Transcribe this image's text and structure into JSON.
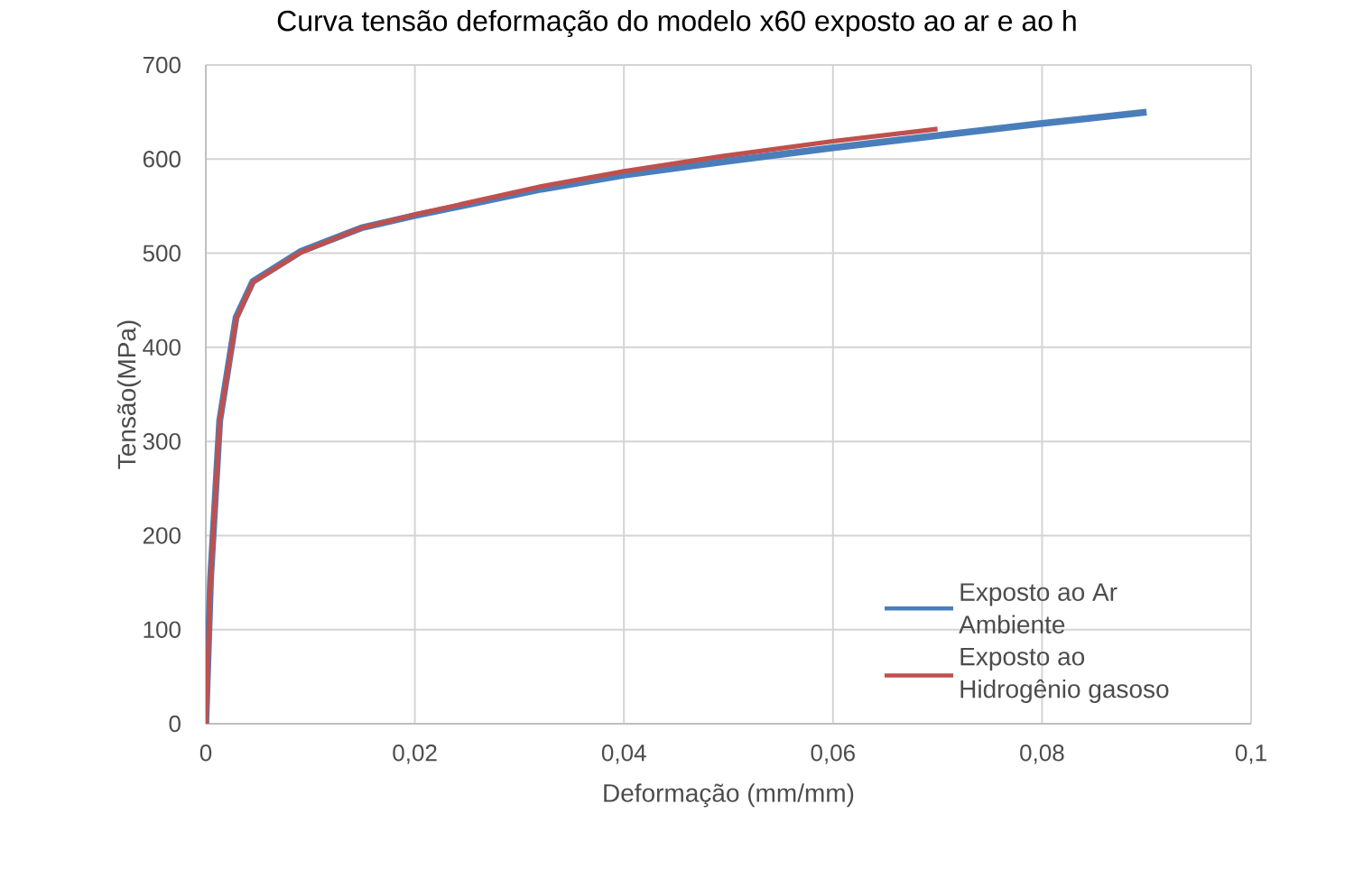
{
  "chart_data": {
    "type": "line",
    "title": "Curva tensão deformação do modelo x60 exposto ao ar e ao h",
    "xlabel": "Deformação (mm/mm)",
    "ylabel": "Tensão(MPa)",
    "xlim": [
      0,
      0.1
    ],
    "ylim": [
      0,
      700
    ],
    "xticks": [
      0,
      {
        "value": 0.02,
        "label": "0,02"
      },
      {
        "value": 0.04,
        "label": "0,04"
      },
      {
        "value": 0.06,
        "label": "0,06"
      },
      {
        "value": 0.08,
        "label": "0,08"
      },
      {
        "value": 0.1,
        "label": "0,1"
      }
    ],
    "yticks": [
      0,
      100,
      200,
      300,
      400,
      500,
      600,
      700
    ],
    "grid": true,
    "legend": "bottom right",
    "line_style": "solid",
    "marker": "none",
    "series": [
      {
        "name": "Exposto ao Ar Ambiente",
        "color": "#4a7ebb",
        "x": [
          0,
          0.00046,
          0.00133,
          0.0029,
          0.0045,
          0.0091,
          0.0149,
          0.02,
          0.0321,
          0.04,
          0.05,
          0.06,
          0.07,
          0.08,
          0.09
        ],
        "values": [
          0,
          155,
          322,
          432,
          470,
          502,
          527,
          540,
          568,
          583,
          598,
          612,
          625,
          638,
          650
        ]
      },
      {
        "name": "Exposto ao Hidrogênio gasoso",
        "color": "#c0504d",
        "x": [
          0,
          0.00046,
          0.00133,
          0.0029,
          0.0045,
          0.0091,
          0.0149,
          0.02,
          0.0321,
          0.04,
          0.0494,
          0.06,
          0.07
        ],
        "values": [
          0,
          155,
          322,
          430,
          469,
          501,
          527,
          541,
          571,
          587,
          603,
          619,
          632
        ]
      }
    ]
  }
}
